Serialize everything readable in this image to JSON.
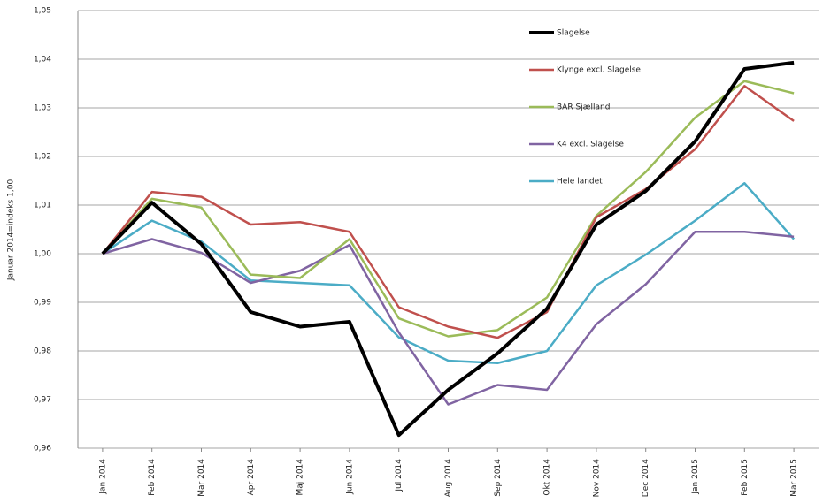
{
  "chart_data": {
    "type": "line",
    "y_label": "Januar 2014=indeks 1,00",
    "categories": [
      "Jan 2014",
      "Feb 2014",
      "Mar 2014",
      "Apr 2014",
      "Maj 2014",
      "Jun 2014",
      "Jul 2014",
      "Aug 2014",
      "Sep 2014",
      "Okt 2014",
      "Nov 2014",
      "Dec 2014",
      "Jan 2015",
      "Feb 2015",
      "Mar 2015"
    ],
    "series": [
      {
        "name": "Slagelse",
        "color": "#000000",
        "width": 4,
        "values": [
          1.0,
          1.0105,
          1.002,
          0.988,
          0.985,
          0.986,
          0.9627,
          0.972,
          0.9795,
          0.9887,
          1.006,
          1.0129,
          1.0231,
          1.038,
          1.0393
        ]
      },
      {
        "name": "Klynge excl. Slagelse",
        "color": "#c0504d",
        "width": 2.5,
        "values": [
          1.0,
          1.0127,
          1.0117,
          1.006,
          1.0065,
          1.0045,
          0.989,
          0.985,
          0.9827,
          0.988,
          1.0075,
          1.0133,
          1.0215,
          1.0345,
          1.0273
        ]
      },
      {
        "name": "BAR Sjælland",
        "color": "#9bbb59",
        "width": 2.5,
        "values": [
          1.0,
          1.0113,
          1.0095,
          0.9957,
          0.995,
          1.003,
          0.9867,
          0.983,
          0.9843,
          0.991,
          1.0078,
          1.0168,
          1.028,
          1.0355,
          1.033
        ]
      },
      {
        "name": "K4 excl. Slagelse",
        "color": "#8064a2",
        "width": 2.5,
        "values": [
          1.0,
          1.003,
          1.0002,
          0.994,
          0.9965,
          1.0018,
          0.9838,
          0.969,
          0.973,
          0.972,
          0.9855,
          0.9937,
          1.0045,
          1.0045,
          1.0035
        ]
      },
      {
        "name": "Hele landet",
        "color": "#4bacc6",
        "width": 2.5,
        "values": [
          1.0,
          1.0068,
          1.0025,
          0.9945,
          0.994,
          0.9935,
          0.9828,
          0.978,
          0.9775,
          0.98,
          0.9935,
          0.9998,
          1.0068,
          1.0145,
          1.003
        ]
      }
    ],
    "ylim": [
      0.96,
      1.05
    ],
    "yticks": [
      {
        "value": 0.96,
        "label": "0,96"
      },
      {
        "value": 0.97,
        "label": "0,97"
      },
      {
        "value": 0.98,
        "label": "0,98"
      },
      {
        "value": 0.99,
        "label": "0,99"
      },
      {
        "value": 1.0,
        "label": "1,00"
      },
      {
        "value": 1.01,
        "label": "1,01"
      },
      {
        "value": 1.02,
        "label": "1,02"
      },
      {
        "value": 1.03,
        "label": "1,03"
      },
      {
        "value": 1.04,
        "label": "1,04"
      },
      {
        "value": 1.05,
        "label": "1,05"
      }
    ],
    "grid": true,
    "legend": "upper right"
  }
}
